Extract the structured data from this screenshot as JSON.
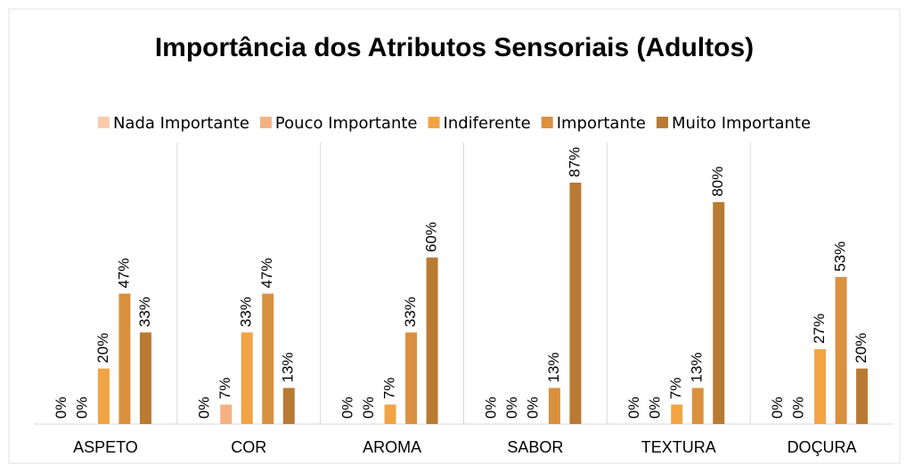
{
  "chart_data": {
    "type": "bar",
    "title": "Importância dos Atributos Sensoriais (Adultos)",
    "categories": [
      "ASPETO",
      "COR",
      "AROMA",
      "SABOR",
      "TEXTURA",
      "DOÇURA"
    ],
    "series": [
      {
        "name": "Nada Importante",
        "color": "#f8cbad",
        "values": [
          0,
          0,
          0,
          0,
          0,
          0
        ],
        "value_labels": [
          "0%",
          "0%",
          "0%",
          "0%",
          "0%",
          "0%"
        ]
      },
      {
        "name": "Pouco Importante",
        "color": "#f4b183",
        "values": [
          0,
          7,
          0,
          0,
          0,
          0
        ],
        "value_labels": [
          "0%",
          "7%",
          "0%",
          "0%",
          "0%",
          "0%"
        ]
      },
      {
        "name": "Indiferente",
        "color": "#f2a444",
        "values": [
          20,
          33,
          7,
          0,
          7,
          27
        ],
        "value_labels": [
          "20%",
          "33%",
          "7%",
          "0%",
          "7%",
          "27%"
        ]
      },
      {
        "name": "Importante",
        "color": "#d9913f",
        "values": [
          47,
          47,
          33,
          13,
          13,
          53
        ],
        "value_labels": [
          "47%",
          "47%",
          "33%",
          "13%",
          "13%",
          "53%"
        ]
      },
      {
        "name": "Muito Importante",
        "color": "#b97a33",
        "values": [
          33,
          13,
          60,
          87,
          80,
          20
        ],
        "value_labels": [
          "33%",
          "13%",
          "60%",
          "87%",
          "80%",
          "20%"
        ]
      }
    ]
  }
}
